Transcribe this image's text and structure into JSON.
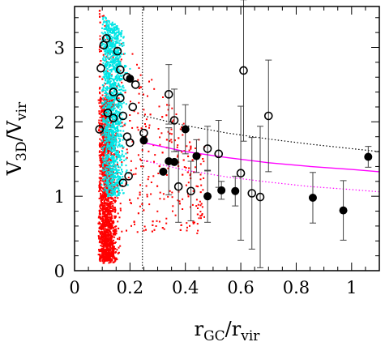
{
  "chart_data": {
    "type": "scatter",
    "title": "",
    "xlabel": {
      "main": "r",
      "sub": "GC",
      "sep": "/r",
      "sub2": "vir"
    },
    "ylabel": {
      "main": "V",
      "sub": "3D",
      "sep": "/V",
      "sub2": "vir"
    },
    "xlim": [
      0,
      1.1
    ],
    "ylim": [
      0,
      3.55
    ],
    "x_ticks": [
      0,
      0.2,
      0.4,
      0.6,
      0.8,
      1
    ],
    "x_tick_labels": [
      "0",
      "0.2",
      "0.4",
      "0.6",
      "0.8",
      "1"
    ],
    "y_ticks": [
      0,
      1,
      2,
      3
    ],
    "y_tick_labels": [
      "0",
      "1",
      "2",
      "3"
    ],
    "grid": false,
    "legend": "none",
    "colors": {
      "red_cloud": "#ff0000",
      "cyan_cloud": "#00e5e5",
      "magenta_curves": "#ff00ff",
      "black_curve": "#000000",
      "points": "#000000"
    },
    "vertical_line_x": 0.245,
    "curves": [
      {
        "style": "dotted",
        "color": "#000000",
        "x": [
          0.25,
          0.4,
          0.55,
          0.7,
          0.85,
          1.0,
          1.1
        ],
        "y": [
          2.08,
          1.95,
          1.85,
          1.77,
          1.7,
          1.64,
          1.6
        ]
      },
      {
        "style": "solid",
        "color": "#ff00ff",
        "x": [
          0.25,
          0.4,
          0.55,
          0.7,
          0.85,
          1.0,
          1.1
        ],
        "y": [
          1.72,
          1.6,
          1.52,
          1.45,
          1.4,
          1.36,
          1.33
        ]
      },
      {
        "style": "dotted",
        "color": "#ff00ff",
        "x": [
          0.25,
          0.4,
          0.55,
          0.7,
          0.85,
          1.0,
          1.1
        ],
        "y": [
          1.48,
          1.35,
          1.26,
          1.19,
          1.13,
          1.09,
          1.06
        ]
      }
    ],
    "series": [
      {
        "marker": "open-circle",
        "points": [
          {
            "x": 0.09,
            "y": 1.9
          },
          {
            "x": 0.095,
            "y": 2.72
          },
          {
            "x": 0.105,
            "y": 3.03
          },
          {
            "x": 0.115,
            "y": 3.12
          },
          {
            "x": 0.12,
            "y": 2.12
          },
          {
            "x": 0.14,
            "y": 2.05
          },
          {
            "x": 0.14,
            "y": 2.4
          },
          {
            "x": 0.155,
            "y": 2.95
          },
          {
            "x": 0.165,
            "y": 2.7
          },
          {
            "x": 0.165,
            "y": 2.32
          },
          {
            "x": 0.175,
            "y": 2.08
          },
          {
            "x": 0.175,
            "y": 1.18
          },
          {
            "x": 0.19,
            "y": 1.8
          },
          {
            "x": 0.19,
            "y": 2.6
          },
          {
            "x": 0.195,
            "y": 1.27
          },
          {
            "x": 0.2,
            "y": 1.72
          },
          {
            "x": 0.21,
            "y": 2.2
          },
          {
            "x": 0.22,
            "y": 2.5
          },
          {
            "x": 0.25,
            "y": 1.85
          },
          {
            "x": 0.34,
            "y": 2.37
          },
          {
            "x": 0.36,
            "y": 2.02
          },
          {
            "x": 0.375,
            "y": 1.13
          },
          {
            "x": 0.42,
            "y": 1.07
          },
          {
            "x": 0.48,
            "y": 1.64
          },
          {
            "x": 0.52,
            "y": 1.57
          },
          {
            "x": 0.6,
            "y": 1.31
          },
          {
            "x": 0.61,
            "y": 2.69
          },
          {
            "x": 0.64,
            "y": 1.04
          },
          {
            "x": 0.67,
            "y": 0.99
          },
          {
            "x": 0.7,
            "y": 2.08
          }
        ],
        "errors": [
          0,
          0,
          0,
          0,
          0,
          0,
          0,
          0,
          0,
          0,
          0,
          0,
          0,
          0,
          0,
          0,
          0,
          0,
          0,
          0.4,
          0.42,
          0.48,
          0.4,
          0.3,
          0.45,
          0.9,
          0.95,
          0.75,
          0.95,
          0.75
        ]
      },
      {
        "marker": "filled-circle",
        "points": [
          {
            "x": 0.2,
            "y": 2.58
          },
          {
            "x": 0.25,
            "y": 1.75
          },
          {
            "x": 0.32,
            "y": 1.33
          },
          {
            "x": 0.34,
            "y": 1.47
          },
          {
            "x": 0.36,
            "y": 1.46
          },
          {
            "x": 0.4,
            "y": 1.9
          },
          {
            "x": 0.44,
            "y": 1.54
          },
          {
            "x": 0.48,
            "y": 1.0
          },
          {
            "x": 0.53,
            "y": 1.08
          },
          {
            "x": 0.58,
            "y": 1.07
          },
          {
            "x": 0.86,
            "y": 0.98
          },
          {
            "x": 0.97,
            "y": 0.81
          },
          {
            "x": 1.06,
            "y": 1.53
          }
        ],
        "errors": [
          0,
          0,
          0,
          0.45,
          0,
          0.33,
          0.22,
          0.35,
          0.12,
          0.2,
          0.34,
          0.4,
          0.14
        ]
      }
    ]
  }
}
